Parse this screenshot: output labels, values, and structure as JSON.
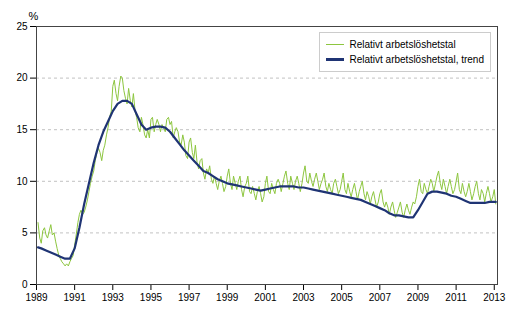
{
  "chart_data": {
    "type": "line",
    "ylabel": "%",
    "xlim": [
      1989.0,
      2013.17
    ],
    "xticks": [
      1989,
      1991,
      1993,
      1995,
      1997,
      1999,
      2001,
      2003,
      2005,
      2007,
      2009,
      2011,
      2013
    ],
    "ylim": [
      0,
      25
    ],
    "yticks": [
      0,
      5,
      10,
      15,
      20,
      25
    ],
    "grid": true,
    "legend": "upper right",
    "series": [
      {
        "name": "Relativt arbetslöshetstal",
        "color": "#8dc63f",
        "x": [
          1989.08,
          1989.17,
          1989.25,
          1989.33,
          1989.42,
          1989.5,
          1989.58,
          1989.67,
          1989.75,
          1989.83,
          1989.92,
          1990.0,
          1990.08,
          1990.17,
          1990.25,
          1990.33,
          1990.42,
          1990.5,
          1990.58,
          1990.67,
          1990.75,
          1990.83,
          1990.92,
          1991.0,
          1991.08,
          1991.17,
          1991.25,
          1991.33,
          1991.42,
          1991.5,
          1991.58,
          1991.67,
          1991.75,
          1991.83,
          1991.92,
          1992.0,
          1992.08,
          1992.17,
          1992.25,
          1992.33,
          1992.42,
          1992.5,
          1992.58,
          1992.67,
          1992.75,
          1992.83,
          1992.92,
          1993.0,
          1993.08,
          1993.17,
          1993.25,
          1993.33,
          1993.42,
          1993.5,
          1993.58,
          1993.67,
          1993.75,
          1993.83,
          1993.92,
          1994.0,
          1994.08,
          1994.17,
          1994.25,
          1994.33,
          1994.42,
          1994.5,
          1994.58,
          1994.67,
          1994.75,
          1994.83,
          1994.92,
          1995.0,
          1995.08,
          1995.17,
          1995.25,
          1995.33,
          1995.42,
          1995.5,
          1995.58,
          1995.67,
          1995.75,
          1995.83,
          1995.92,
          1996.0,
          1996.08,
          1996.17,
          1996.25,
          1996.33,
          1996.42,
          1996.5,
          1996.58,
          1996.67,
          1996.75,
          1996.83,
          1996.92,
          1997.0,
          1997.08,
          1997.17,
          1997.25,
          1997.33,
          1997.42,
          1997.5,
          1997.58,
          1997.67,
          1997.75,
          1997.83,
          1997.92,
          1998.0,
          1998.08,
          1998.17,
          1998.25,
          1998.33,
          1998.42,
          1998.5,
          1998.58,
          1998.67,
          1998.75,
          1998.83,
          1998.92,
          1999.0,
          1999.08,
          1999.17,
          1999.25,
          1999.33,
          1999.42,
          1999.5,
          1999.58,
          1999.67,
          1999.75,
          1999.83,
          1999.92,
          2000.0,
          2000.08,
          2000.17,
          2000.25,
          2000.33,
          2000.42,
          2000.5,
          2000.58,
          2000.67,
          2000.75,
          2000.83,
          2000.92,
          2001.0,
          2001.08,
          2001.17,
          2001.25,
          2001.33,
          2001.42,
          2001.5,
          2001.58,
          2001.67,
          2001.75,
          2001.83,
          2001.92,
          2002.0,
          2002.08,
          2002.17,
          2002.25,
          2002.33,
          2002.42,
          2002.5,
          2002.58,
          2002.67,
          2002.75,
          2002.83,
          2002.92,
          2003.0,
          2003.08,
          2003.17,
          2003.25,
          2003.33,
          2003.42,
          2003.5,
          2003.58,
          2003.67,
          2003.75,
          2003.83,
          2003.92,
          2004.0,
          2004.08,
          2004.17,
          2004.25,
          2004.33,
          2004.42,
          2004.5,
          2004.58,
          2004.67,
          2004.75,
          2004.83,
          2004.92,
          2005.0,
          2005.08,
          2005.17,
          2005.25,
          2005.33,
          2005.42,
          2005.5,
          2005.58,
          2005.67,
          2005.75,
          2005.83,
          2005.92,
          2006.0,
          2006.08,
          2006.17,
          2006.25,
          2006.33,
          2006.42,
          2006.5,
          2006.58,
          2006.67,
          2006.75,
          2006.83,
          2006.92,
          2007.0,
          2007.08,
          2007.17,
          2007.25,
          2007.33,
          2007.42,
          2007.5,
          2007.58,
          2007.67,
          2007.75,
          2007.83,
          2007.92,
          2008.0,
          2008.08,
          2008.17,
          2008.25,
          2008.33,
          2008.42,
          2008.5,
          2008.58,
          2008.67,
          2008.75,
          2008.83,
          2008.92,
          2009.0,
          2009.08,
          2009.17,
          2009.25,
          2009.33,
          2009.42,
          2009.5,
          2009.58,
          2009.67,
          2009.75,
          2009.83,
          2009.92,
          2010.0,
          2010.08,
          2010.17,
          2010.25,
          2010.33,
          2010.42,
          2010.5,
          2010.58,
          2010.67,
          2010.75,
          2010.83,
          2010.92,
          2011.0,
          2011.08,
          2011.17,
          2011.25,
          2011.33,
          2011.42,
          2011.5,
          2011.58,
          2011.67,
          2011.75,
          2011.83,
          2011.92,
          2012.0,
          2012.08,
          2012.17,
          2012.25,
          2012.33,
          2012.42,
          2012.5,
          2012.58,
          2012.67,
          2012.75,
          2012.83,
          2012.92,
          2013.0,
          2013.08
        ],
        "values": [
          6.0,
          4.5,
          4.0,
          5.2,
          5.5,
          4.8,
          4.5,
          5.2,
          5.8,
          4.8,
          5.0,
          4.2,
          3.5,
          2.8,
          2.5,
          2.2,
          2.0,
          1.8,
          2.0,
          1.8,
          2.2,
          2.5,
          2.8,
          3.8,
          4.8,
          6.0,
          6.8,
          7.2,
          6.8,
          7.0,
          7.5,
          8.2,
          9.0,
          9.8,
          10.5,
          11.0,
          12.0,
          12.8,
          13.2,
          12.8,
          12.0,
          13.0,
          13.5,
          14.5,
          15.2,
          16.2,
          16.8,
          19.2,
          19.8,
          18.5,
          17.8,
          19.2,
          20.2,
          20.0,
          18.8,
          18.0,
          17.5,
          19.0,
          17.8,
          17.2,
          18.5,
          16.8,
          16.2,
          15.2,
          14.8,
          16.2,
          15.5,
          14.5,
          14.2,
          15.0,
          14.2,
          16.0,
          16.2,
          14.8,
          15.5,
          16.0,
          15.5,
          14.8,
          15.5,
          15.2,
          14.8,
          16.0,
          16.2,
          15.5,
          15.8,
          14.2,
          14.8,
          15.2,
          14.8,
          13.8,
          13.5,
          14.5,
          13.8,
          12.5,
          12.2,
          13.8,
          14.2,
          12.8,
          12.2,
          13.5,
          11.8,
          11.2,
          12.0,
          12.2,
          10.8,
          10.2,
          11.2,
          10.8,
          11.5,
          10.2,
          9.8,
          10.5,
          9.8,
          9.2,
          10.0,
          10.5,
          9.8,
          9.0,
          9.5,
          10.5,
          11.2,
          9.8,
          9.2,
          10.5,
          9.8,
          9.2,
          10.0,
          10.5,
          9.2,
          8.5,
          9.5,
          9.8,
          10.5,
          9.0,
          8.8,
          9.5,
          8.8,
          8.2,
          9.0,
          9.5,
          8.8,
          8.0,
          8.5,
          9.8,
          10.5,
          9.0,
          8.8,
          9.8,
          9.2,
          8.8,
          9.8,
          10.2,
          9.8,
          9.0,
          9.8,
          10.5,
          11.0,
          9.8,
          9.2,
          10.5,
          9.8,
          9.2,
          10.0,
          10.5,
          9.8,
          9.0,
          9.8,
          10.8,
          11.5,
          10.0,
          9.8,
          10.8,
          10.0,
          9.5,
          10.2,
          10.8,
          10.0,
          9.2,
          9.8,
          10.2,
          10.8,
          9.5,
          9.0,
          9.8,
          9.2,
          8.8,
          9.8,
          10.2,
          9.5,
          8.8,
          9.2,
          10.0,
          10.8,
          9.2,
          8.8,
          9.8,
          9.0,
          8.5,
          9.2,
          9.8,
          9.0,
          8.2,
          9.0,
          9.5,
          10.0,
          8.8,
          8.2,
          9.0,
          8.5,
          7.8,
          8.5,
          9.0,
          8.2,
          7.5,
          8.0,
          8.8,
          9.2,
          8.0,
          7.5,
          8.0,
          7.5,
          6.8,
          7.5,
          8.0,
          7.2,
          6.5,
          7.0,
          7.5,
          8.0,
          7.0,
          6.5,
          7.2,
          7.8,
          7.2,
          6.8,
          7.5,
          8.0,
          7.8,
          8.5,
          9.5,
          10.2,
          9.0,
          8.8,
          9.8,
          9.2,
          8.8,
          9.5,
          10.2,
          9.8,
          9.0,
          9.8,
          10.5,
          11.0,
          9.8,
          9.2,
          10.2,
          9.5,
          8.8,
          9.5,
          10.2,
          9.5,
          8.8,
          9.2,
          10.0,
          10.8,
          9.2,
          8.8,
          9.8,
          9.0,
          8.5,
          9.0,
          9.8,
          9.0,
          8.2,
          8.8,
          9.5,
          10.0,
          8.8,
          8.2,
          9.2,
          8.8,
          8.0,
          8.8,
          9.5,
          8.8,
          8.0,
          8.5,
          9.2,
          7.8
        ]
      },
      {
        "name": "Relativt arbetslöshetstal, trend",
        "color": "#1f3474",
        "x": [
          1989.08,
          1989.25,
          1989.5,
          1989.75,
          1990.0,
          1990.25,
          1990.5,
          1990.75,
          1991.0,
          1991.25,
          1991.5,
          1991.75,
          1992.0,
          1992.25,
          1992.5,
          1992.75,
          1993.0,
          1993.25,
          1993.5,
          1993.75,
          1994.0,
          1994.25,
          1994.5,
          1994.75,
          1995.0,
          1995.25,
          1995.5,
          1995.75,
          1996.0,
          1996.25,
          1996.5,
          1996.75,
          1997.0,
          1997.25,
          1997.5,
          1997.75,
          1998.0,
          1998.25,
          1998.5,
          1998.75,
          1999.0,
          1999.25,
          1999.5,
          1999.75,
          2000.0,
          2000.25,
          2000.5,
          2000.75,
          2001.0,
          2001.25,
          2001.5,
          2001.75,
          2002.0,
          2002.25,
          2002.5,
          2002.75,
          2003.0,
          2003.25,
          2003.5,
          2003.75,
          2004.0,
          2004.25,
          2004.5,
          2004.75,
          2005.0,
          2005.25,
          2005.5,
          2005.75,
          2006.0,
          2006.25,
          2006.5,
          2006.75,
          2007.0,
          2007.25,
          2007.5,
          2007.75,
          2008.0,
          2008.25,
          2008.5,
          2008.75,
          2009.0,
          2009.25,
          2009.5,
          2009.75,
          2010.0,
          2010.25,
          2010.5,
          2010.75,
          2011.0,
          2011.25,
          2011.5,
          2011.75,
          2012.0,
          2012.25,
          2012.5,
          2012.75,
          2013.0,
          2013.08
        ],
        "values": [
          3.6,
          3.5,
          3.3,
          3.1,
          2.9,
          2.7,
          2.5,
          2.5,
          3.5,
          5.5,
          7.8,
          9.8,
          11.8,
          13.5,
          14.8,
          15.8,
          16.8,
          17.5,
          17.8,
          17.8,
          17.5,
          16.5,
          15.5,
          15.0,
          15.2,
          15.3,
          15.3,
          15.2,
          14.8,
          14.2,
          13.6,
          13.0,
          12.5,
          12.0,
          11.5,
          11.0,
          10.8,
          10.5,
          10.2,
          10.0,
          9.8,
          9.7,
          9.6,
          9.5,
          9.4,
          9.3,
          9.2,
          9.1,
          9.2,
          9.3,
          9.4,
          9.5,
          9.5,
          9.5,
          9.5,
          9.4,
          9.4,
          9.3,
          9.2,
          9.1,
          9.0,
          8.9,
          8.8,
          8.7,
          8.6,
          8.5,
          8.4,
          8.3,
          8.2,
          8.0,
          7.8,
          7.6,
          7.4,
          7.2,
          6.9,
          6.7,
          6.7,
          6.6,
          6.5,
          6.5,
          7.2,
          8.0,
          8.8,
          9.0,
          9.0,
          8.9,
          8.8,
          8.6,
          8.5,
          8.3,
          8.1,
          7.9,
          7.9,
          7.9,
          7.9,
          8.0,
          8.0,
          8.0
        ]
      }
    ]
  }
}
